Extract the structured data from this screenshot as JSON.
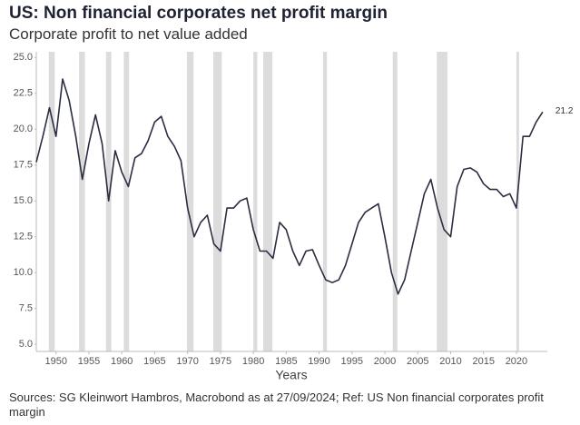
{
  "chart_data": {
    "type": "line",
    "title": "US: Non financial corporates net profit margin",
    "subtitle": "Corporate profit to net value added",
    "x_label": "Years",
    "source": "Sources: SG Kleinwort Hambros, Macrobond as at 27/09/2024; Ref: US Non financial corporates profit margin",
    "x": [
      1947,
      1948,
      1949,
      1950,
      1951,
      1952,
      1953,
      1954,
      1955,
      1956,
      1957,
      1958,
      1959,
      1960,
      1961,
      1962,
      1963,
      1964,
      1965,
      1966,
      1967,
      1968,
      1969,
      1970,
      1971,
      1972,
      1973,
      1974,
      1975,
      1976,
      1977,
      1978,
      1979,
      1980,
      1981,
      1982,
      1983,
      1984,
      1985,
      1986,
      1987,
      1988,
      1989,
      1990,
      1991,
      1992,
      1993,
      1994,
      1995,
      1996,
      1997,
      1998,
      1999,
      2000,
      2001,
      2002,
      2003,
      2004,
      2005,
      2006,
      2007,
      2008,
      2009,
      2010,
      2011,
      2012,
      2013,
      2014,
      2015,
      2016,
      2017,
      2018,
      2019,
      2020,
      2021,
      2022,
      2023,
      2024
    ],
    "series": [
      {
        "color": "#2b2d42",
        "values": [
          17.7,
          19.5,
          21.5,
          19.5,
          23.5,
          22,
          19.5,
          16.5,
          19,
          21,
          19,
          15,
          18.5,
          17,
          16,
          18,
          18.3,
          19.2,
          20.5,
          20.9,
          19.5,
          18.8,
          17.8,
          14.5,
          12.5,
          13.5,
          14,
          12,
          11.5,
          14.5,
          14.5,
          15,
          15.2,
          13,
          11.5,
          11.5,
          11,
          13.5,
          13,
          11.5,
          10.5,
          11.5,
          11.6,
          10.5,
          9.5,
          9.3,
          9.5,
          10.5,
          12,
          13.5,
          14.2,
          14.5,
          14.8,
          12.5,
          10,
          8.5,
          9.5,
          11.5,
          13.5,
          15.5,
          16.5,
          14.5,
          13,
          12.5,
          16,
          17.2,
          17.3,
          17,
          16.2,
          15.8,
          15.8,
          15.3,
          15.5,
          14.5,
          19.5,
          19.5,
          20.5,
          21.2
        ]
      }
    ],
    "shaded_periods": [
      [
        1948.9,
        1949.8
      ],
      [
        1953.5,
        1954.4
      ],
      [
        1957.6,
        1958.4
      ],
      [
        1960.3,
        1961.1
      ],
      [
        1969.9,
        1970.9
      ],
      [
        1973.9,
        1975.2
      ],
      [
        1980.0,
        1980.6
      ],
      [
        1981.5,
        1982.9
      ],
      [
        1990.6,
        1991.2
      ],
      [
        2001.2,
        2001.9
      ],
      [
        2007.9,
        2009.5
      ],
      [
        2020.0,
        2020.4
      ]
    ],
    "shade_color": "#dcdcdc",
    "xlim": [
      1947,
      2024.7
    ],
    "ylim": [
      4.5,
      25.4
    ],
    "xticks": [
      1950,
      1955,
      1960,
      1965,
      1970,
      1975,
      1980,
      1985,
      1990,
      1995,
      2000,
      2005,
      2010,
      2015,
      2020
    ],
    "yticks": [
      {
        "value": 5,
        "label": "5.0"
      },
      {
        "value": 7.5,
        "label": "7.5"
      },
      {
        "value": 10,
        "label": "10.0"
      },
      {
        "value": 12.5,
        "label": "12.5"
      },
      {
        "value": 15,
        "label": "15.0"
      },
      {
        "value": 17.5,
        "label": "17.5"
      },
      {
        "value": 20,
        "label": "20.0"
      },
      {
        "value": 22.5,
        "label": "22.5"
      },
      {
        "value": 25,
        "label": "25.0"
      }
    ]
  }
}
